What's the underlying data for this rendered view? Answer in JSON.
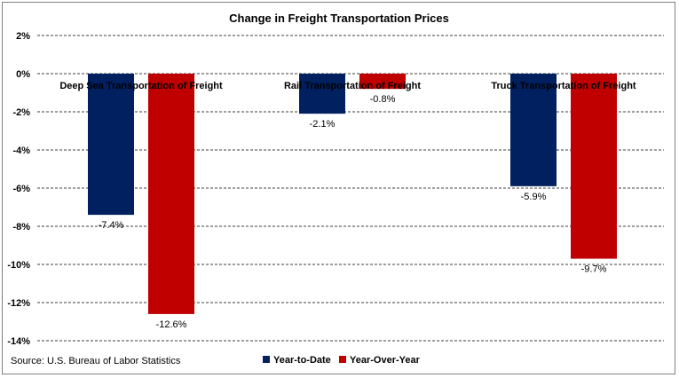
{
  "chart_data": {
    "type": "bar",
    "title": "Change in Freight Transportation Prices",
    "categories": [
      "Deep Sea Transportation of Freight",
      "Rail Transportation of Freight",
      "Truck Transportation of Freight"
    ],
    "series": [
      {
        "name": "Year-to-Date",
        "values": [
          -7.4,
          -2.1,
          -5.9
        ],
        "labels": [
          "-7.4%",
          "-2.1%",
          "-5.9%"
        ],
        "color": "#002060"
      },
      {
        "name": "Year-Over-Year",
        "values": [
          -12.6,
          -0.8,
          -9.7
        ],
        "labels": [
          "-12.6%",
          "-0.8%",
          "-9.7%"
        ],
        "color": "#c00000"
      }
    ],
    "ylim": [
      -14,
      2
    ],
    "ticks": [
      2,
      0,
      -2,
      -4,
      -6,
      -8,
      -10,
      -12,
      -14
    ],
    "tick_labels": [
      "2%",
      "0%",
      "-2%",
      "-4%",
      "-6%",
      "-8%",
      "-10%",
      "-12%",
      "-14%"
    ],
    "grid": true,
    "legend_position": "bottom",
    "source": "Source: U.S. Bureau of Labor Statistics"
  }
}
